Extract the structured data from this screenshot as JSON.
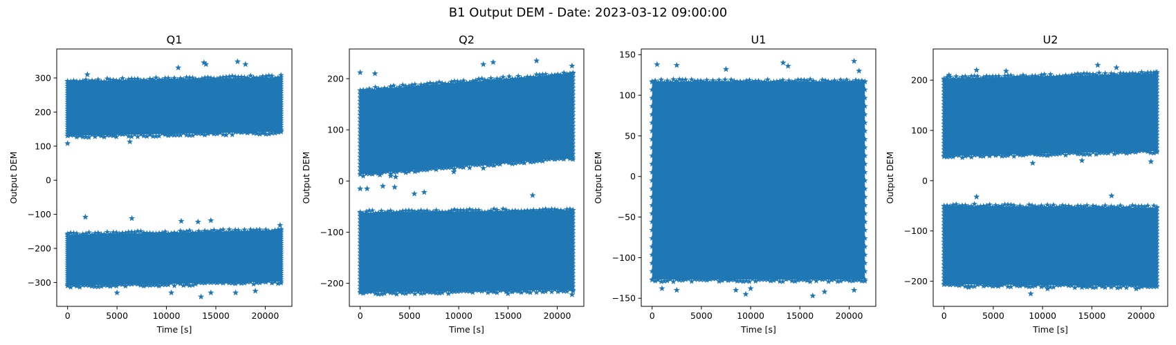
{
  "figure": {
    "title": "B1 Output DEM - Date: 2023-03-12 09:00:00",
    "colors": {
      "marker": "#1f77b4",
      "axes": "#000000",
      "background": "#ffffff"
    }
  },
  "chart_data": [
    {
      "type": "scatter",
      "marker": "star",
      "title": "Q1",
      "xlabel": "Time [s]",
      "ylabel": "Output DEM",
      "xlim": [
        -1100,
        22700
      ],
      "ylim": [
        -370,
        385
      ],
      "xticks": [
        0,
        5000,
        10000,
        15000,
        20000
      ],
      "yticks": [
        -300,
        -200,
        -100,
        0,
        100,
        200,
        300
      ],
      "x_range": [
        0,
        21600
      ],
      "bands": [
        {
          "center": [
            210,
            222
          ],
          "half_width": 80
        },
        {
          "center": [
            -235,
            -222
          ],
          "half_width": 75
        }
      ],
      "outliers": [
        [
          0,
          108
        ],
        [
          2000,
          310
        ],
        [
          6300,
          113
        ],
        [
          11200,
          330
        ],
        [
          13800,
          345
        ],
        [
          14000,
          340
        ],
        [
          17200,
          348
        ],
        [
          18000,
          340
        ],
        [
          1800,
          -108
        ],
        [
          6500,
          -112
        ],
        [
          11500,
          -120
        ],
        [
          13200,
          -122
        ],
        [
          14500,
          -118
        ],
        [
          21500,
          -132
        ],
        [
          5000,
          -330
        ],
        [
          10500,
          -330
        ],
        [
          13500,
          -342
        ],
        [
          14500,
          -330
        ],
        [
          17000,
          -330
        ],
        [
          19000,
          -325
        ]
      ]
    },
    {
      "type": "scatter",
      "marker": "star",
      "title": "Q2",
      "xlabel": "Time [s]",
      "ylabel": "Output DEM",
      "xlim": [
        -1100,
        22700
      ],
      "ylim": [
        -245,
        258
      ],
      "xticks": [
        0,
        5000,
        10000,
        15000,
        20000
      ],
      "yticks": [
        -200,
        -100,
        0,
        100,
        200
      ],
      "x_range": [
        0,
        21600
      ],
      "bands": [
        {
          "center": [
            95,
            128
          ],
          "half_width": 82
        },
        {
          "center": [
            -140,
            -135
          ],
          "half_width": 78
        }
      ],
      "outliers": [
        [
          0,
          212
        ],
        [
          1500,
          210
        ],
        [
          12500,
          228
        ],
        [
          13500,
          232
        ],
        [
          17900,
          235
        ],
        [
          21500,
          225
        ],
        [
          2000,
          12
        ],
        [
          3100,
          10
        ],
        [
          3600,
          8
        ],
        [
          4500,
          20
        ],
        [
          9500,
          18
        ],
        [
          12500,
          25
        ],
        [
          0,
          -15
        ],
        [
          700,
          -15
        ],
        [
          2300,
          -10
        ],
        [
          3500,
          -12
        ],
        [
          5500,
          -25
        ],
        [
          6500,
          -22
        ],
        [
          17500,
          -28
        ],
        [
          1000,
          -215
        ],
        [
          3200,
          -212
        ],
        [
          8000,
          -215
        ],
        [
          15000,
          -220
        ],
        [
          21500,
          -222
        ]
      ]
    },
    {
      "type": "scatter",
      "marker": "star",
      "title": "U1",
      "xlabel": "Time [s]",
      "ylabel": "Output DEM",
      "xlim": [
        -1100,
        22700
      ],
      "ylim": [
        -160,
        157
      ],
      "xticks": [
        0,
        5000,
        10000,
        15000,
        20000
      ],
      "yticks": [
        -150,
        -100,
        -50,
        0,
        50,
        100,
        150
      ],
      "x_range": [
        0,
        21600
      ],
      "bands": [
        {
          "center": [
            -5,
            -5
          ],
          "half_width": 122
        }
      ],
      "outliers": [
        [
          500,
          138
        ],
        [
          2500,
          137
        ],
        [
          7500,
          132
        ],
        [
          13300,
          140
        ],
        [
          13800,
          136
        ],
        [
          20500,
          142
        ],
        [
          21000,
          130
        ],
        [
          1000,
          -138
        ],
        [
          2500,
          -140
        ],
        [
          8500,
          -140
        ],
        [
          9500,
          -145
        ],
        [
          10000,
          -138
        ],
        [
          16300,
          -147
        ],
        [
          17500,
          -142
        ],
        [
          20500,
          -140
        ]
      ]
    },
    {
      "type": "scatter",
      "marker": "star",
      "title": "U2",
      "xlabel": "Time [s]",
      "ylabel": "Output DEM",
      "xlim": [
        -1100,
        22700
      ],
      "ylim": [
        -250,
        262
      ],
      "xticks": [
        0,
        5000,
        10000,
        15000,
        20000
      ],
      "yticks": [
        -200,
        -100,
        0,
        100,
        200
      ],
      "x_range": [
        0,
        21600
      ],
      "bands": [
        {
          "center": [
            126,
            136
          ],
          "half_width": 77
        },
        {
          "center": [
            -128,
            -132
          ],
          "half_width": 78
        }
      ],
      "outliers": [
        [
          500,
          210
        ],
        [
          3300,
          220
        ],
        [
          6300,
          218
        ],
        [
          15600,
          230
        ],
        [
          17500,
          225
        ],
        [
          21500,
          215
        ],
        [
          9000,
          35
        ],
        [
          14000,
          40
        ],
        [
          21000,
          38
        ],
        [
          3300,
          -32
        ],
        [
          17000,
          -30
        ],
        [
          2500,
          -212
        ],
        [
          5500,
          -210
        ],
        [
          8800,
          -225
        ],
        [
          10500,
          -215
        ],
        [
          14000,
          -212
        ],
        [
          19500,
          -215
        ]
      ]
    }
  ]
}
